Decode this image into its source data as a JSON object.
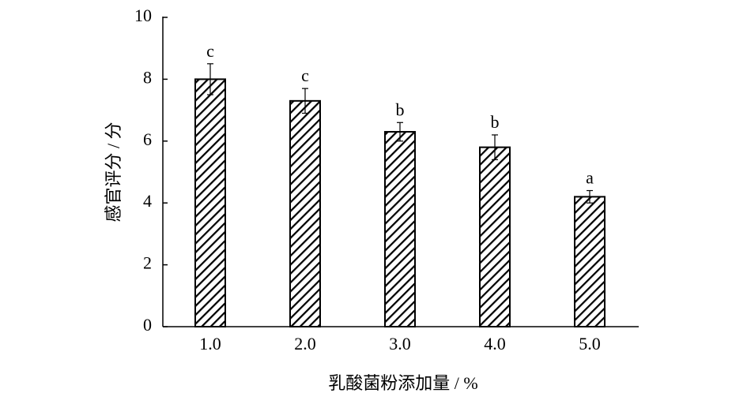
{
  "chart_data": {
    "type": "bar",
    "x_label": "乳酸菌粉添加量 / %",
    "y_label": "感官评分 / 分",
    "categories": [
      "1.0",
      "2.0",
      "3.0",
      "4.0",
      "5.0"
    ],
    "values": [
      8.0,
      7.3,
      6.3,
      5.8,
      4.2
    ],
    "errors": [
      0.5,
      0.4,
      0.3,
      0.4,
      0.2
    ],
    "significance": [
      "c",
      "c",
      "b",
      "b",
      "a"
    ],
    "ylim": [
      0,
      10
    ],
    "yticks": [
      0,
      2,
      4,
      6,
      8,
      10
    ],
    "color": "#000000",
    "hatch": true,
    "grid": false
  }
}
